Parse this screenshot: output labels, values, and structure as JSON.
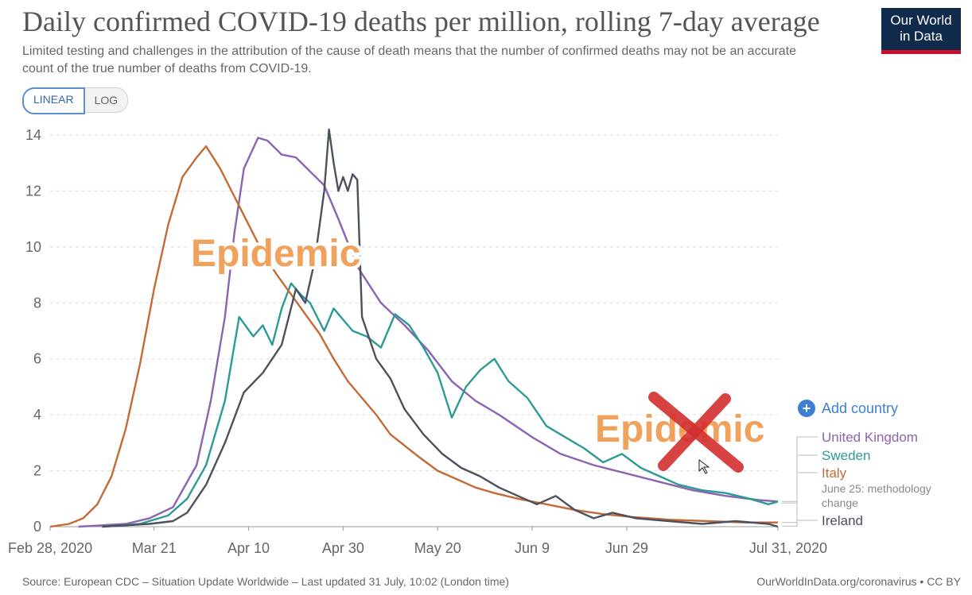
{
  "header": {
    "title": "Daily confirmed COVID-19 deaths per million, rolling 7-day average",
    "subtitle": "Limited testing and challenges in the attribution of the cause of death means that the number of confirmed deaths may not be an accurate count of the true number of deaths from COVID-19.",
    "logo_line1": "Our World",
    "logo_line2": "in Data"
  },
  "controls": {
    "linear_label": "LINEAR",
    "log_label": "LOG",
    "add_country_label": "Add country"
  },
  "annotations": {
    "epidemic_top": "Epidemic",
    "epidemic_bottom": "Epidemic",
    "methodology_line1": "June 25: methodology",
    "methodology_line2": "change"
  },
  "footer": {
    "source": "Source: European CDC – Situation Update Worldwide – Last updated 31 July, 10:02 (London time)",
    "url": "OurWorldInData.org/coronavirus • CC BY"
  },
  "colors": {
    "United Kingdom": "#8a63b3",
    "Sweden": "#2d9a96",
    "Italy": "#c36a35",
    "Ireland": "#4c5160",
    "epidemic_text": "#f0a25c",
    "cross": "#d32f2f"
  },
  "chart_data": {
    "type": "line",
    "title": "Daily confirmed COVID-19 deaths per million, rolling 7-day average",
    "ylim": [
      0,
      14
    ],
    "y_ticks": [
      0,
      2,
      4,
      6,
      8,
      10,
      12,
      14
    ],
    "x_ticks": [
      "Feb 28, 2020",
      "Mar 21",
      "Apr 10",
      "Apr 30",
      "May 20",
      "Jun 9",
      "Jun 29",
      "Jul 31, 2020"
    ],
    "grid": true,
    "legend": "right",
    "series": [
      {
        "name": "United Kingdom",
        "points": [
          [
            "2020-03-05",
            0
          ],
          [
            "2020-03-15",
            0.1
          ],
          [
            "2020-03-20",
            0.3
          ],
          [
            "2020-03-25",
            0.7
          ],
          [
            "2020-03-30",
            2.2
          ],
          [
            "2020-04-02",
            4.5
          ],
          [
            "2020-04-05",
            7.5
          ],
          [
            "2020-04-07",
            10.5
          ],
          [
            "2020-04-09",
            12.8
          ],
          [
            "2020-04-12",
            13.9
          ],
          [
            "2020-04-14",
            13.8
          ],
          [
            "2020-04-17",
            13.3
          ],
          [
            "2020-04-20",
            13.2
          ],
          [
            "2020-04-23",
            12.7
          ],
          [
            "2020-04-26",
            12.2
          ],
          [
            "2020-04-29",
            11.0
          ],
          [
            "2020-05-03",
            9.3
          ],
          [
            "2020-05-08",
            8.0
          ],
          [
            "2020-05-13",
            7.2
          ],
          [
            "2020-05-18",
            6.3
          ],
          [
            "2020-05-23",
            5.2
          ],
          [
            "2020-05-28",
            4.5
          ],
          [
            "2020-06-02",
            4.0
          ],
          [
            "2020-06-09",
            3.2
          ],
          [
            "2020-06-15",
            2.6
          ],
          [
            "2020-06-22",
            2.2
          ],
          [
            "2020-06-29",
            1.9
          ],
          [
            "2020-07-06",
            1.6
          ],
          [
            "2020-07-13",
            1.3
          ],
          [
            "2020-07-20",
            1.1
          ],
          [
            "2020-07-27",
            0.95
          ],
          [
            "2020-07-31",
            0.9
          ]
        ]
      },
      {
        "name": "Sweden",
        "points": [
          [
            "2020-03-10",
            0
          ],
          [
            "2020-03-18",
            0.1
          ],
          [
            "2020-03-24",
            0.4
          ],
          [
            "2020-03-28",
            1.0
          ],
          [
            "2020-04-01",
            2.2
          ],
          [
            "2020-04-05",
            4.5
          ],
          [
            "2020-04-08",
            7.5
          ],
          [
            "2020-04-11",
            6.8
          ],
          [
            "2020-04-13",
            7.2
          ],
          [
            "2020-04-15",
            6.5
          ],
          [
            "2020-04-17",
            7.8
          ],
          [
            "2020-04-19",
            8.7
          ],
          [
            "2020-04-21",
            8.3
          ],
          [
            "2020-04-23",
            8.0
          ],
          [
            "2020-04-26",
            7.0
          ],
          [
            "2020-04-28",
            7.8
          ],
          [
            "2020-05-02",
            7.0
          ],
          [
            "2020-05-05",
            6.8
          ],
          [
            "2020-05-08",
            6.4
          ],
          [
            "2020-05-11",
            7.6
          ],
          [
            "2020-05-14",
            7.2
          ],
          [
            "2020-05-17",
            6.4
          ],
          [
            "2020-05-20",
            5.5
          ],
          [
            "2020-05-23",
            3.9
          ],
          [
            "2020-05-26",
            5.0
          ],
          [
            "2020-05-29",
            5.6
          ],
          [
            "2020-06-01",
            6.0
          ],
          [
            "2020-06-04",
            5.2
          ],
          [
            "2020-06-08",
            4.6
          ],
          [
            "2020-06-12",
            3.6
          ],
          [
            "2020-06-16",
            3.2
          ],
          [
            "2020-06-20",
            2.8
          ],
          [
            "2020-06-24",
            2.3
          ],
          [
            "2020-06-28",
            2.6
          ],
          [
            "2020-07-02",
            2.1
          ],
          [
            "2020-07-06",
            1.8
          ],
          [
            "2020-07-10",
            1.5
          ],
          [
            "2020-07-15",
            1.3
          ],
          [
            "2020-07-20",
            1.2
          ],
          [
            "2020-07-25",
            1.0
          ],
          [
            "2020-07-29",
            0.8
          ],
          [
            "2020-07-31",
            0.9
          ]
        ]
      },
      {
        "name": "Italy",
        "points": [
          [
            "2020-02-28",
            0
          ],
          [
            "2020-03-03",
            0.1
          ],
          [
            "2020-03-06",
            0.3
          ],
          [
            "2020-03-09",
            0.8
          ],
          [
            "2020-03-12",
            1.8
          ],
          [
            "2020-03-15",
            3.5
          ],
          [
            "2020-03-18",
            5.8
          ],
          [
            "2020-03-21",
            8.5
          ],
          [
            "2020-03-24",
            10.8
          ],
          [
            "2020-03-27",
            12.5
          ],
          [
            "2020-03-30",
            13.2
          ],
          [
            "2020-04-01",
            13.6
          ],
          [
            "2020-04-04",
            12.8
          ],
          [
            "2020-04-07",
            11.8
          ],
          [
            "2020-04-10",
            10.8
          ],
          [
            "2020-04-13",
            9.8
          ],
          [
            "2020-04-16",
            9.0
          ],
          [
            "2020-04-19",
            8.3
          ],
          [
            "2020-04-22",
            7.6
          ],
          [
            "2020-04-25",
            6.9
          ],
          [
            "2020-04-28",
            6.0
          ],
          [
            "2020-05-01",
            5.2
          ],
          [
            "2020-05-04",
            4.6
          ],
          [
            "2020-05-07",
            4.0
          ],
          [
            "2020-05-10",
            3.3
          ],
          [
            "2020-05-13",
            2.9
          ],
          [
            "2020-05-16",
            2.5
          ],
          [
            "2020-05-20",
            2.0
          ],
          [
            "2020-05-24",
            1.7
          ],
          [
            "2020-05-28",
            1.4
          ],
          [
            "2020-06-01",
            1.2
          ],
          [
            "2020-06-06",
            1.0
          ],
          [
            "2020-06-12",
            0.8
          ],
          [
            "2020-06-18",
            0.6
          ],
          [
            "2020-06-24",
            0.45
          ],
          [
            "2020-06-30",
            0.35
          ],
          [
            "2020-07-08",
            0.25
          ],
          [
            "2020-07-16",
            0.2
          ],
          [
            "2020-07-24",
            0.15
          ],
          [
            "2020-07-31",
            0.15
          ]
        ]
      },
      {
        "name": "Ireland",
        "points": [
          [
            "2020-03-10",
            0
          ],
          [
            "2020-03-20",
            0.1
          ],
          [
            "2020-03-25",
            0.2
          ],
          [
            "2020-03-28",
            0.5
          ],
          [
            "2020-04-01",
            1.5
          ],
          [
            "2020-04-05",
            3.0
          ],
          [
            "2020-04-09",
            4.8
          ],
          [
            "2020-04-13",
            5.5
          ],
          [
            "2020-04-17",
            6.5
          ],
          [
            "2020-04-20",
            8.5
          ],
          [
            "2020-04-22",
            8.0
          ],
          [
            "2020-04-24",
            9.5
          ],
          [
            "2020-04-26",
            12.0
          ],
          [
            "2020-04-27",
            14.2
          ],
          [
            "2020-04-28",
            13.0
          ],
          [
            "2020-04-29",
            12.0
          ],
          [
            "2020-04-30",
            12.5
          ],
          [
            "2020-05-01",
            12.0
          ],
          [
            "2020-05-02",
            12.6
          ],
          [
            "2020-05-03",
            12.4
          ],
          [
            "2020-05-04",
            7.5
          ],
          [
            "2020-05-07",
            6.0
          ],
          [
            "2020-05-10",
            5.3
          ],
          [
            "2020-05-13",
            4.2
          ],
          [
            "2020-05-17",
            3.3
          ],
          [
            "2020-05-21",
            2.6
          ],
          [
            "2020-05-25",
            2.1
          ],
          [
            "2020-05-29",
            1.8
          ],
          [
            "2020-06-02",
            1.4
          ],
          [
            "2020-06-06",
            1.1
          ],
          [
            "2020-06-10",
            0.8
          ],
          [
            "2020-06-14",
            1.1
          ],
          [
            "2020-06-18",
            0.6
          ],
          [
            "2020-06-22",
            0.3
          ],
          [
            "2020-06-26",
            0.5
          ],
          [
            "2020-07-01",
            0.3
          ],
          [
            "2020-07-08",
            0.2
          ],
          [
            "2020-07-15",
            0.1
          ],
          [
            "2020-07-22",
            0.2
          ],
          [
            "2020-07-29",
            0.1
          ],
          [
            "2020-07-31",
            0.0
          ]
        ]
      }
    ]
  }
}
